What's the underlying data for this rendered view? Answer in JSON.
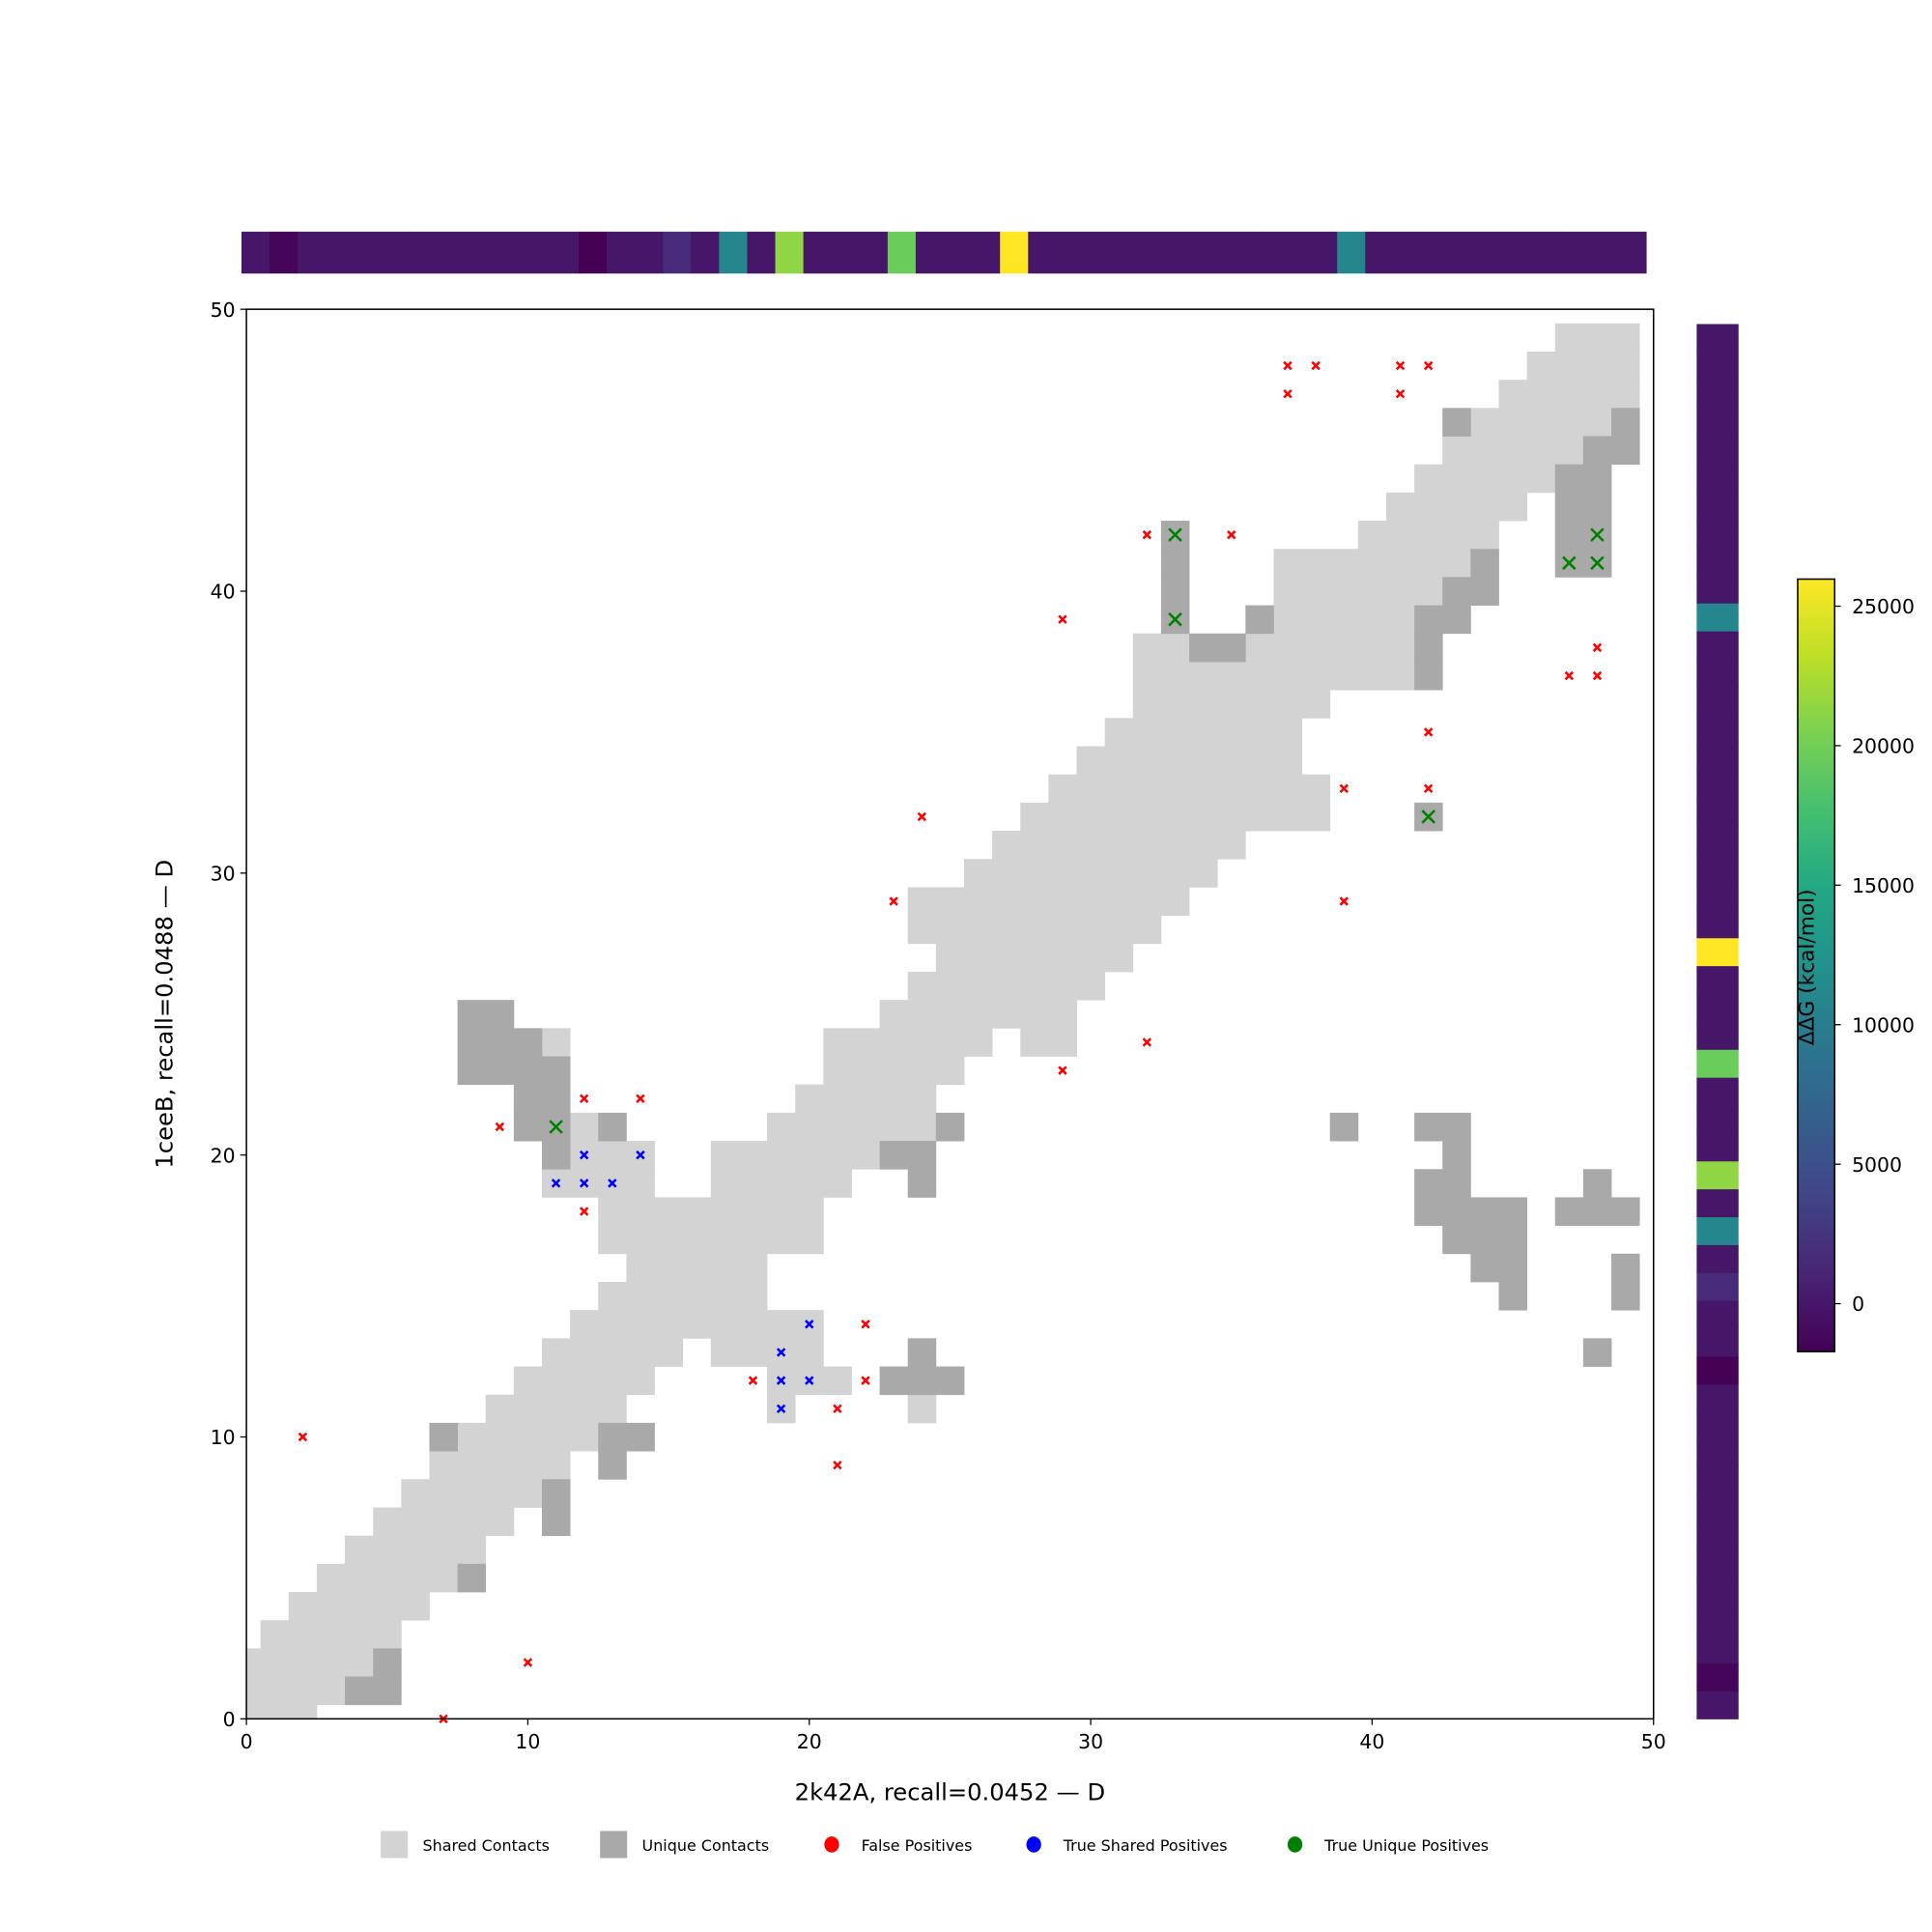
{
  "chart_data": {
    "type": "heatmap",
    "title": "",
    "xlabel": "2k42A, recall=0.0452 — D",
    "ylabel": "1ceeB, recall=0.0488 — D",
    "xlim": [
      0,
      50
    ],
    "ylim": [
      0,
      50
    ],
    "x_ticks": [
      "0",
      "10",
      "20",
      "30",
      "40",
      "50"
    ],
    "y_ticks": [
      "0",
      "10",
      "20",
      "30",
      "40",
      "50"
    ],
    "colors": {
      "shared": "#d3d3d3",
      "unique": "#a9a9a9",
      "false_positive": "#ff0000",
      "true_shared_positive": "#0000ff",
      "true_unique_positive": "#008000"
    },
    "shared_contacts_runs_y_xstart_xend": [
      [
        0,
        0,
        2
      ],
      [
        1,
        0,
        3
      ],
      [
        2,
        0,
        4
      ],
      [
        3,
        1,
        5
      ],
      [
        4,
        2,
        6
      ],
      [
        5,
        3,
        7
      ],
      [
        6,
        4,
        8
      ],
      [
        7,
        5,
        9
      ],
      [
        8,
        6,
        10
      ],
      [
        9,
        7,
        11
      ],
      [
        10,
        8,
        12
      ],
      [
        11,
        9,
        13
      ],
      [
        11,
        19,
        19
      ],
      [
        11,
        24,
        24
      ],
      [
        12,
        10,
        14
      ],
      [
        12,
        19,
        21
      ],
      [
        13,
        11,
        15
      ],
      [
        13,
        17,
        20
      ],
      [
        14,
        12,
        20
      ],
      [
        15,
        13,
        18
      ],
      [
        16,
        14,
        18
      ],
      [
        17,
        13,
        20
      ],
      [
        18,
        13,
        20
      ],
      [
        19,
        11,
        14
      ],
      [
        19,
        17,
        21
      ],
      [
        20,
        12,
        14
      ],
      [
        20,
        17,
        22
      ],
      [
        21,
        12,
        12
      ],
      [
        21,
        19,
        24
      ],
      [
        22,
        20,
        24
      ],
      [
        23,
        21,
        25
      ],
      [
        24,
        11,
        11
      ],
      [
        24,
        21,
        26
      ],
      [
        24,
        28,
        29
      ],
      [
        25,
        23,
        29
      ],
      [
        26,
        24,
        30
      ],
      [
        27,
        25,
        31
      ],
      [
        28,
        24,
        32
      ],
      [
        29,
        24,
        33
      ],
      [
        30,
        26,
        34
      ],
      [
        31,
        27,
        35
      ],
      [
        32,
        28,
        38
      ],
      [
        33,
        29,
        38
      ],
      [
        34,
        30,
        37
      ],
      [
        35,
        31,
        37
      ],
      [
        36,
        32,
        38
      ],
      [
        37,
        32,
        41
      ],
      [
        38,
        32,
        33
      ],
      [
        38,
        36,
        41
      ],
      [
        39,
        37,
        41
      ],
      [
        40,
        37,
        42
      ],
      [
        41,
        37,
        43
      ],
      [
        42,
        40,
        44
      ],
      [
        43,
        41,
        45
      ],
      [
        44,
        42,
        46
      ],
      [
        45,
        43,
        47
      ],
      [
        46,
        44,
        48
      ],
      [
        47,
        45,
        49
      ],
      [
        48,
        46,
        49
      ],
      [
        49,
        47,
        49
      ]
    ],
    "unique_contacts_runs_y_xstart_xend": [
      [
        1,
        4,
        5
      ],
      [
        2,
        5,
        5
      ],
      [
        5,
        8,
        8
      ],
      [
        7,
        11,
        11
      ],
      [
        8,
        11,
        11
      ],
      [
        9,
        13,
        13
      ],
      [
        10,
        7,
        7
      ],
      [
        10,
        13,
        14
      ],
      [
        12,
        23,
        25
      ],
      [
        13,
        24,
        24
      ],
      [
        13,
        48,
        48
      ],
      [
        15,
        45,
        45
      ],
      [
        15,
        49,
        49
      ],
      [
        16,
        44,
        45
      ],
      [
        16,
        49,
        49
      ],
      [
        17,
        43,
        45
      ],
      [
        18,
        42,
        45
      ],
      [
        18,
        47,
        49
      ],
      [
        19,
        24,
        24
      ],
      [
        19,
        42,
        43
      ],
      [
        19,
        48,
        48
      ],
      [
        20,
        11,
        11
      ],
      [
        20,
        23,
        24
      ],
      [
        20,
        43,
        43
      ],
      [
        21,
        10,
        11
      ],
      [
        21,
        13,
        13
      ],
      [
        21,
        25,
        25
      ],
      [
        21,
        39,
        39
      ],
      [
        21,
        42,
        43
      ],
      [
        22,
        10,
        11
      ],
      [
        23,
        8,
        11
      ],
      [
        24,
        8,
        10
      ],
      [
        25,
        8,
        9
      ],
      [
        32,
        42,
        42
      ],
      [
        37,
        42,
        42
      ],
      [
        38,
        34,
        35
      ],
      [
        38,
        42,
        42
      ],
      [
        39,
        33,
        33
      ],
      [
        39,
        36,
        36
      ],
      [
        39,
        42,
        43
      ],
      [
        40,
        33,
        33
      ],
      [
        40,
        43,
        44
      ],
      [
        41,
        33,
        33
      ],
      [
        41,
        44,
        44
      ],
      [
        41,
        47,
        48
      ],
      [
        42,
        33,
        33
      ],
      [
        42,
        47,
        48
      ],
      [
        43,
        47,
        48
      ],
      [
        44,
        47,
        48
      ],
      [
        45,
        48,
        49
      ],
      [
        46,
        43,
        43
      ],
      [
        46,
        49,
        49
      ]
    ],
    "false_positives": [
      [
        2,
        10
      ],
      [
        10,
        2
      ],
      [
        7,
        0
      ],
      [
        9,
        21
      ],
      [
        12,
        22
      ],
      [
        14,
        22
      ],
      [
        12,
        18
      ],
      [
        18,
        12
      ],
      [
        21,
        11
      ],
      [
        21,
        9
      ],
      [
        22,
        14
      ],
      [
        22,
        12
      ],
      [
        23,
        29
      ],
      [
        24,
        32
      ],
      [
        29,
        23
      ],
      [
        32,
        24
      ],
      [
        29,
        39
      ],
      [
        32,
        42
      ],
      [
        35,
        42
      ],
      [
        37,
        48
      ],
      [
        38,
        48
      ],
      [
        41,
        48
      ],
      [
        42,
        48
      ],
      [
        37,
        47
      ],
      [
        41,
        47
      ],
      [
        39,
        33
      ],
      [
        42,
        33
      ],
      [
        42,
        35
      ],
      [
        39,
        29
      ],
      [
        47,
        37
      ],
      [
        48,
        37
      ],
      [
        48,
        38
      ]
    ],
    "true_shared_positives": [
      [
        11,
        19
      ],
      [
        12,
        19
      ],
      [
        13,
        19
      ],
      [
        12,
        20
      ],
      [
        14,
        20
      ],
      [
        19,
        13
      ],
      [
        20,
        14
      ],
      [
        19,
        12
      ],
      [
        20,
        12
      ],
      [
        19,
        11
      ]
    ],
    "true_unique_positives": [
      [
        11,
        21
      ],
      [
        33,
        42
      ],
      [
        33,
        39
      ],
      [
        42,
        32
      ],
      [
        47,
        41
      ],
      [
        48,
        41
      ],
      [
        48,
        42
      ]
    ],
    "residue_ddg_values": [
      0,
      -1300,
      0,
      0,
      0,
      0,
      0,
      0,
      0,
      0,
      0,
      0,
      -1720,
      0,
      0,
      1600,
      0,
      11000,
      0,
      21300,
      0,
      0,
      0,
      19600,
      0,
      0,
      0,
      25970,
      0,
      0,
      0,
      0,
      0,
      0,
      0,
      0,
      0,
      0,
      0,
      11000,
      0,
      0,
      0,
      0,
      0,
      0,
      0,
      0,
      0,
      0
    ],
    "colorbar": {
      "label": "ΔΔG (kcal/mol)",
      "range": [
        -1720,
        25970
      ],
      "ticks": [
        0,
        5000,
        10000,
        15000,
        20000,
        25000
      ],
      "tick_labels": [
        "0",
        "5000",
        "10000",
        "15000",
        "20000",
        "25000"
      ],
      "colormap": "viridis"
    },
    "legend": {
      "placement": "bottom",
      "items": [
        {
          "label": "Shared Contacts",
          "kind": "patch",
          "color": "#d3d3d3"
        },
        {
          "label": "Unique Contacts",
          "kind": "patch",
          "color": "#a9a9a9"
        },
        {
          "label": "False Positives",
          "kind": "dot",
          "color": "#ff0000"
        },
        {
          "label": "True Shared Positives",
          "kind": "dot",
          "color": "#0000ff"
        },
        {
          "label": "True Unique Positives",
          "kind": "dot",
          "color": "#008000"
        }
      ]
    }
  }
}
